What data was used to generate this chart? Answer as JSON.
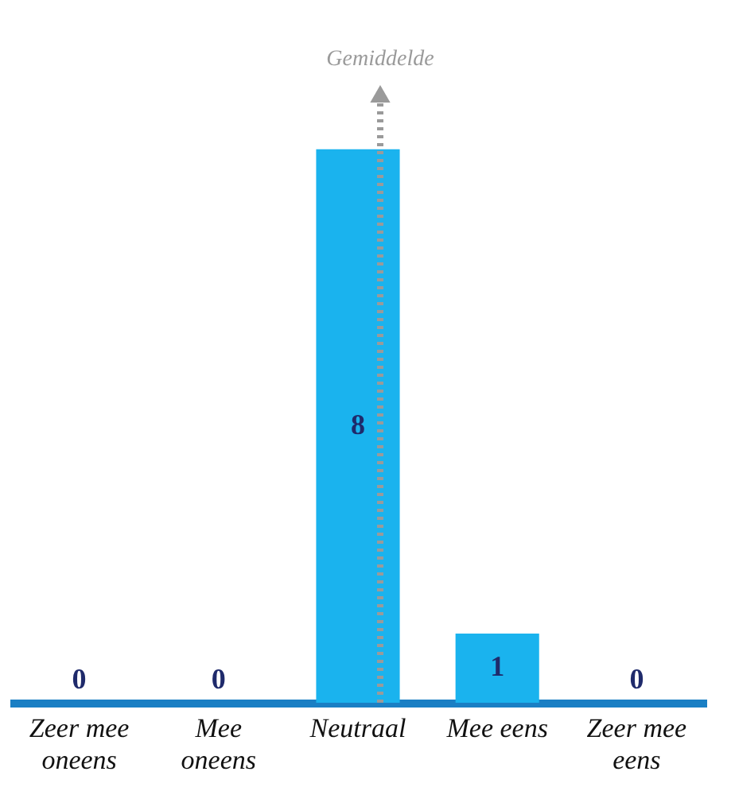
{
  "chart_data": {
    "type": "bar",
    "categories": [
      "Zeer mee oneens",
      "Mee oneens",
      "Neutraal",
      "Mee eens",
      "Zeer mee eens"
    ],
    "values": [
      0,
      0,
      8,
      1,
      0
    ],
    "color": "#1ab3ee",
    "data_labels": true,
    "ref_lines": [
      {
        "axis": "x",
        "value": "Neutraal",
        "label": "Gemiddelde",
        "color": "#9a9a9a",
        "line_style": "dotted"
      }
    ]
  }
}
